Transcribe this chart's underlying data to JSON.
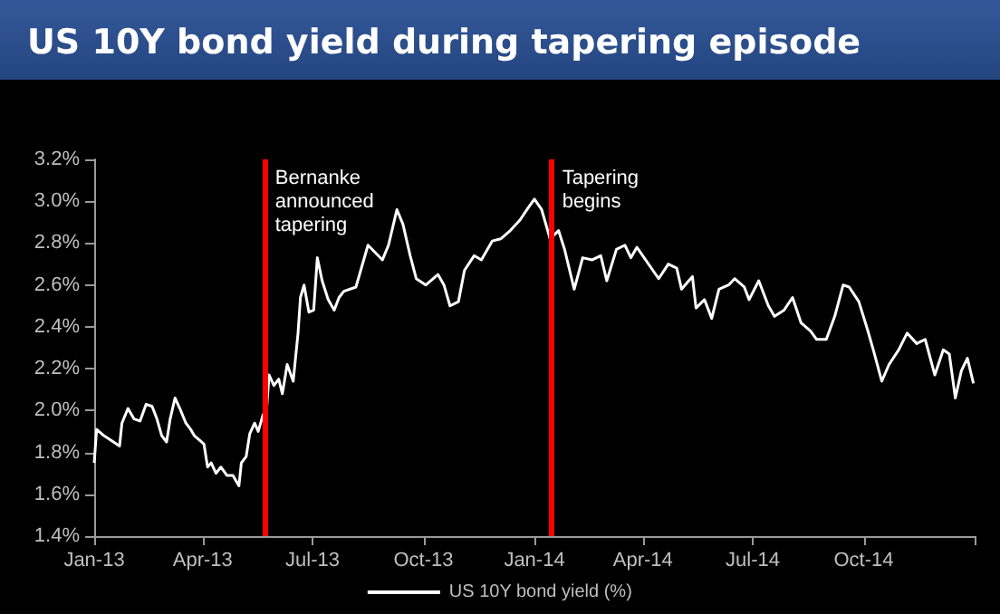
{
  "chart_data": {
    "type": "line",
    "title": "US 10Y bond yield during tapering episode",
    "xlim": [
      "2013-01-01",
      "2015-01-01"
    ],
    "xticks": [
      {
        "value": "2013-01-01",
        "label": "Jan-13"
      },
      {
        "value": "2013-04-01",
        "label": "Apr-13"
      },
      {
        "value": "2013-07-01",
        "label": "Jul-13"
      },
      {
        "value": "2013-10-01",
        "label": "Oct-13"
      },
      {
        "value": "2014-01-01",
        "label": "Jan-14"
      },
      {
        "value": "2014-04-01",
        "label": "Apr-14"
      },
      {
        "value": "2014-07-01",
        "label": "Jul-14"
      },
      {
        "value": "2014-10-01",
        "label": "Oct-14"
      },
      {
        "value": "2015-01-01",
        "label": null
      }
    ],
    "ylim": [
      1.4,
      3.2
    ],
    "yticks": [
      {
        "value": 1.4,
        "label": "1.4%"
      },
      {
        "value": 1.6,
        "label": "1.6%"
      },
      {
        "value": 1.8,
        "label": "1.8%"
      },
      {
        "value": 2.0,
        "label": "2.0%"
      },
      {
        "value": 2.2,
        "label": "2.2%"
      },
      {
        "value": 2.4,
        "label": "2.4%"
      },
      {
        "value": 2.6,
        "label": "2.6%"
      },
      {
        "value": 2.8,
        "label": "2.8%"
      },
      {
        "value": 3.0,
        "label": "3.0%"
      },
      {
        "value": 3.2,
        "label": "3.2%"
      }
    ],
    "x": [
      "2013-01-01",
      "2013-01-03",
      "2013-01-09",
      "2013-01-17",
      "2013-01-22",
      "2013-01-24",
      "2013-01-29",
      "2013-02-03",
      "2013-02-08",
      "2013-02-13",
      "2013-02-18",
      "2013-02-22",
      "2013-02-26",
      "2013-03-02",
      "2013-03-05",
      "2013-03-09",
      "2013-03-13",
      "2013-03-18",
      "2013-03-22",
      "2013-03-25",
      "2013-03-29",
      "2013-04-02",
      "2013-04-05",
      "2013-04-08",
      "2013-04-12",
      "2013-04-16",
      "2013-04-21",
      "2013-04-26",
      "2013-05-01",
      "2013-05-03",
      "2013-05-07",
      "2013-05-10",
      "2013-05-14",
      "2013-05-17",
      "2013-05-21",
      "2013-05-24",
      "2013-05-26",
      "2013-05-30",
      "2013-06-03",
      "2013-06-06",
      "2013-06-10",
      "2013-06-15",
      "2013-06-19",
      "2013-06-21",
      "2013-06-24",
      "2013-06-28",
      "2013-07-02",
      "2013-07-05",
      "2013-07-09",
      "2013-07-14",
      "2013-07-19",
      "2013-07-23",
      "2013-07-27",
      "2013-08-06",
      "2013-08-16",
      "2013-08-28",
      "2013-09-02",
      "2013-09-09",
      "2013-09-14",
      "2013-09-20",
      "2013-09-25",
      "2013-10-03",
      "2013-10-13",
      "2013-10-18",
      "2013-10-23",
      "2013-10-30",
      "2013-11-04",
      "2013-11-12",
      "2013-11-18",
      "2013-11-27",
      "2013-12-04",
      "2013-12-12",
      "2013-12-20",
      "2013-12-27",
      "2014-01-01",
      "2014-01-07",
      "2014-01-14",
      "2014-01-21",
      "2014-01-26",
      "2014-02-03",
      "2014-02-10",
      "2014-02-18",
      "2014-02-25",
      "2014-03-02",
      "2014-03-10",
      "2014-03-17",
      "2014-03-22",
      "2014-03-27",
      "2014-04-14",
      "2014-04-22",
      "2014-04-29",
      "2014-05-03",
      "2014-05-12",
      "2014-05-15",
      "2014-05-22",
      "2014-05-28",
      "2014-06-03",
      "2014-06-11",
      "2014-06-16",
      "2014-06-24",
      "2014-06-28",
      "2014-07-06",
      "2014-07-14",
      "2014-07-19",
      "2014-07-27",
      "2014-08-03",
      "2014-08-10",
      "2014-08-18",
      "2014-08-23",
      "2014-08-31",
      "2014-09-07",
      "2014-09-14",
      "2014-09-19",
      "2014-09-27",
      "2014-10-04",
      "2014-10-09",
      "2014-10-16",
      "2014-10-22",
      "2014-10-30",
      "2014-11-06",
      "2014-11-14",
      "2014-11-21",
      "2014-11-29",
      "2014-12-06",
      "2014-12-11",
      "2014-12-16",
      "2014-12-21",
      "2014-12-26",
      "2014-12-31"
    ],
    "series": [
      {
        "name": "US 10Y bond yield (%)",
        "color": "#ffffff",
        "values": [
          1.75,
          1.91,
          1.88,
          1.85,
          1.83,
          1.94,
          2.01,
          1.96,
          1.95,
          2.03,
          2.02,
          1.96,
          1.88,
          1.85,
          1.96,
          2.06,
          2.01,
          1.94,
          1.91,
          1.88,
          1.86,
          1.84,
          1.73,
          1.75,
          1.7,
          1.73,
          1.69,
          1.69,
          1.64,
          1.75,
          1.78,
          1.89,
          1.94,
          1.9,
          1.98,
          2.01,
          2.17,
          2.12,
          2.15,
          2.08,
          2.22,
          2.14,
          2.37,
          2.54,
          2.6,
          2.47,
          2.48,
          2.73,
          2.62,
          2.53,
          2.48,
          2.54,
          2.57,
          2.59,
          2.79,
          2.72,
          2.79,
          2.96,
          2.89,
          2.74,
          2.63,
          2.6,
          2.65,
          2.6,
          2.5,
          2.52,
          2.67,
          2.74,
          2.72,
          2.81,
          2.82,
          2.86,
          2.91,
          2.97,
          3.01,
          2.96,
          2.82,
          2.86,
          2.77,
          2.58,
          2.73,
          2.72,
          2.74,
          2.62,
          2.77,
          2.79,
          2.73,
          2.78,
          2.63,
          2.7,
          2.68,
          2.58,
          2.64,
          2.49,
          2.53,
          2.44,
          2.58,
          2.6,
          2.63,
          2.59,
          2.53,
          2.62,
          2.5,
          2.45,
          2.48,
          2.54,
          2.42,
          2.38,
          2.34,
          2.34,
          2.45,
          2.6,
          2.59,
          2.52,
          2.39,
          2.29,
          2.14,
          2.22,
          2.29,
          2.37,
          2.32,
          2.34,
          2.17,
          2.29,
          2.27,
          2.06,
          2.19,
          2.25,
          2.13
        ]
      }
    ],
    "ref_lines": [
      {
        "axis": "x",
        "value": "2013-05-22",
        "label": "Bernanke announced tapering",
        "color": "#ff0000"
      },
      {
        "axis": "x",
        "value": "2014-01-15",
        "label": "Tapering begins",
        "color": "#ff0000"
      }
    ],
    "marker": "none",
    "line_style": "solid",
    "legend": "bottom"
  }
}
